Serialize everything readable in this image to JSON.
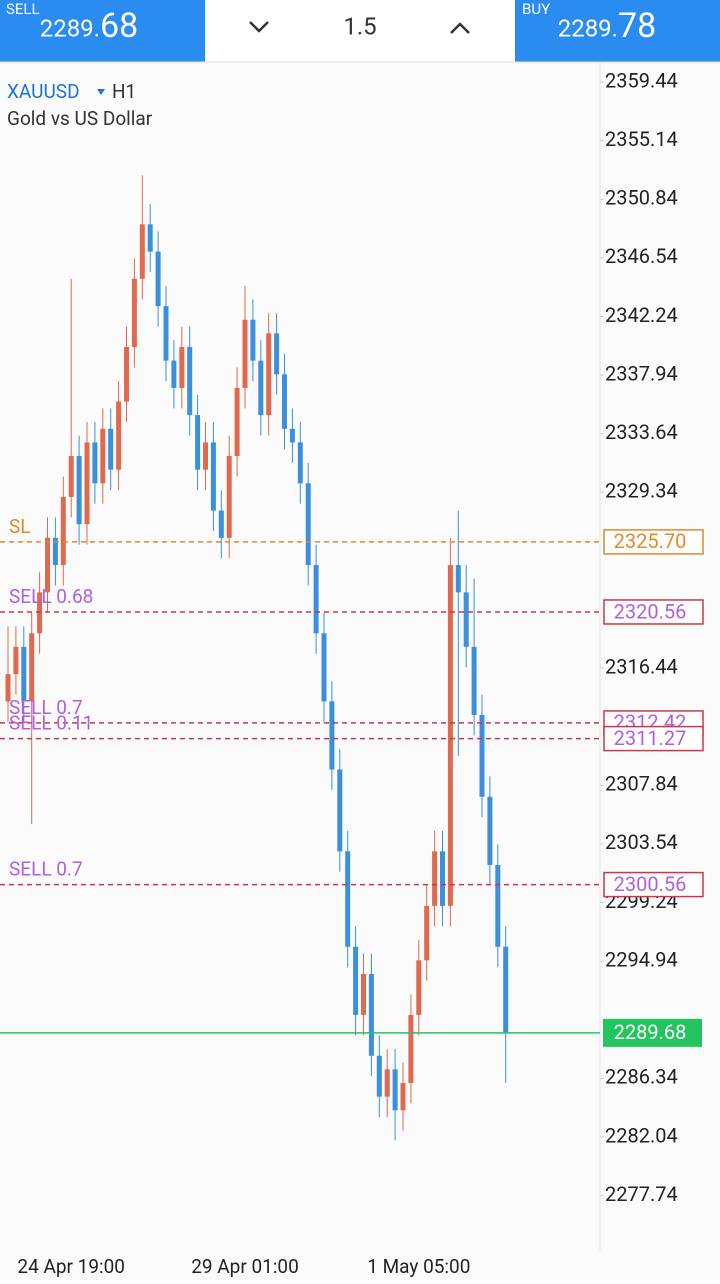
{
  "toolbar": {
    "sell_label": "SELL",
    "sell_price_main": "2289.",
    "sell_price_pips": "68",
    "lot": "1.5",
    "buy_label": "BUY",
    "buy_price_main": "2289.",
    "buy_price_pips": "78"
  },
  "symbol": {
    "name": "XAUUSD",
    "timeframe": "H1",
    "description": "Gold vs US Dollar"
  },
  "chart_data": {
    "type": "candlestick",
    "categories": [
      null,
      null,
      null,
      null,
      null,
      null,
      null,
      null,
      "24 Apr 19:00",
      null,
      null,
      null,
      null,
      null,
      null,
      null,
      null,
      null,
      null,
      null,
      null,
      null,
      null,
      null,
      null,
      null,
      null,
      null,
      null,
      null,
      "29 Apr 01:00",
      null,
      null,
      null,
      null,
      null,
      null,
      null,
      null,
      null,
      null,
      null,
      null,
      null,
      null,
      null,
      null,
      null,
      null,
      null,
      null,
      null,
      "1 May 05:00",
      null,
      null,
      null,
      null,
      null,
      null,
      null,
      null,
      null,
      null,
      null
    ],
    "open": [
      2314,
      2316,
      2318,
      2314,
      2319,
      2322,
      2326,
      2324,
      2329,
      2332,
      2327,
      2333,
      2330,
      2334,
      2331,
      2336,
      2340,
      2345,
      2349,
      2347,
      2343,
      2339,
      2337,
      2340,
      2335,
      2331,
      2333,
      2328,
      2326,
      2332,
      2337,
      2342,
      2339,
      2335,
      2341,
      2338,
      2334,
      2333,
      2330,
      2324,
      2319,
      2314,
      2309,
      2303,
      2296,
      2291,
      2294,
      2288,
      2285,
      2287,
      2284,
      2286,
      2291,
      2295,
      2299,
      2303,
      2299,
      2324,
      2322,
      2318,
      2313,
      2307,
      2302,
      2296
    ],
    "high": [
      2319.5,
      2319.5,
      2319.5,
      2320.5,
      2323.5,
      2327.5,
      2327.5,
      2330.5,
      2345,
      2333.5,
      2334.5,
      2334.5,
      2335.5,
      2335.5,
      2337.5,
      2341.5,
      2346.5,
      2352.6,
      2350.5,
      2348.5,
      2344.5,
      2340.5,
      2341.5,
      2341.5,
      2336.5,
      2334.5,
      2334.5,
      2329.5,
      2333.5,
      2338.5,
      2344.5,
      2343.5,
      2340.5,
      2342.5,
      2342.5,
      2339.5,
      2335.5,
      2334.5,
      2331.5,
      2325.5,
      2320.5,
      2315.5,
      2310.5,
      2304.5,
      2297.5,
      2295.5,
      2295.5,
      2289.5,
      2288.5,
      2288.5,
      2287.5,
      2292.5,
      2296.5,
      2300.5,
      2304.5,
      2304.5,
      2326,
      2328,
      2324,
      2323,
      2314.5,
      2308.5,
      2303.5,
      2297.5
    ],
    "low": [
      2312.5,
      2314.5,
      2312.5,
      2305,
      2317.5,
      2320.5,
      2322.5,
      2322.5,
      2327.5,
      2325.5,
      2325.5,
      2328.5,
      2328.5,
      2329.5,
      2329.5,
      2334.5,
      2338.5,
      2343.5,
      2345.5,
      2341.5,
      2337.5,
      2335.5,
      2335.5,
      2333.5,
      2329.5,
      2329.5,
      2326.5,
      2324.5,
      2324.5,
      2330.5,
      2335.5,
      2337.5,
      2333.5,
      2333.5,
      2336.5,
      2332.5,
      2331.5,
      2328.5,
      2322.5,
      2317.5,
      2312.5,
      2307.5,
      2301.5,
      2294.5,
      2289.5,
      2289.5,
      2286.5,
      2283.5,
      2283.5,
      2281.8,
      2282.5,
      2284.5,
      2289.5,
      2293.5,
      2297.5,
      2297.5,
      2297.5,
      2310,
      2316.5,
      2311.5,
      2305.5,
      2300.5,
      2294.5,
      2286
    ],
    "close": [
      2316,
      2318,
      2314,
      2319,
      2322,
      2326,
      2324,
      2329,
      2332,
      2327,
      2333,
      2330,
      2334,
      2331,
      2336,
      2340,
      2345,
      2349,
      2347,
      2343,
      2339,
      2337,
      2340,
      2335,
      2331,
      2333,
      2328,
      2326,
      2332,
      2337,
      2342,
      2339,
      2335,
      2341,
      2338,
      2334,
      2333,
      2330,
      2324,
      2319,
      2314,
      2309,
      2303,
      2296,
      2291,
      2294,
      2288,
      2285,
      2287,
      2284,
      2286,
      2291,
      2295,
      2299,
      2303,
      2299,
      2324,
      2322,
      2318,
      2313,
      2307,
      2302,
      2296,
      2289.68
    ],
    "up_color": "#e0694f",
    "down_color": "#3b8fdc",
    "ylim": [
      2273.75,
      2360.69
    ],
    "yticks": [
      2359.44,
      2355.14,
      2350.84,
      2346.54,
      2342.24,
      2337.94,
      2333.64,
      2329.34,
      2316.44,
      2307.84,
      2303.54,
      2299.24,
      2294.94,
      2286.34,
      2282.04,
      2277.74
    ],
    "levels": [
      {
        "label": "SL",
        "price": 2325.7,
        "price_label": "2325.70",
        "color": "#e08a2c"
      },
      {
        "label": "SELL 0.68",
        "price": 2320.56,
        "color": "#d0344a"
      },
      {
        "label": "SELL 0.7",
        "price": 2312.42,
        "color": "#d0344a"
      },
      {
        "label": "SELL 0.11",
        "price": 2311.27,
        "color": "#d0344a"
      },
      {
        "label": "SELL 0.7",
        "price": 2300.56,
        "color": "#d0344a"
      }
    ],
    "bid": {
      "price": 2289.68,
      "color": "#22c55e"
    }
  }
}
